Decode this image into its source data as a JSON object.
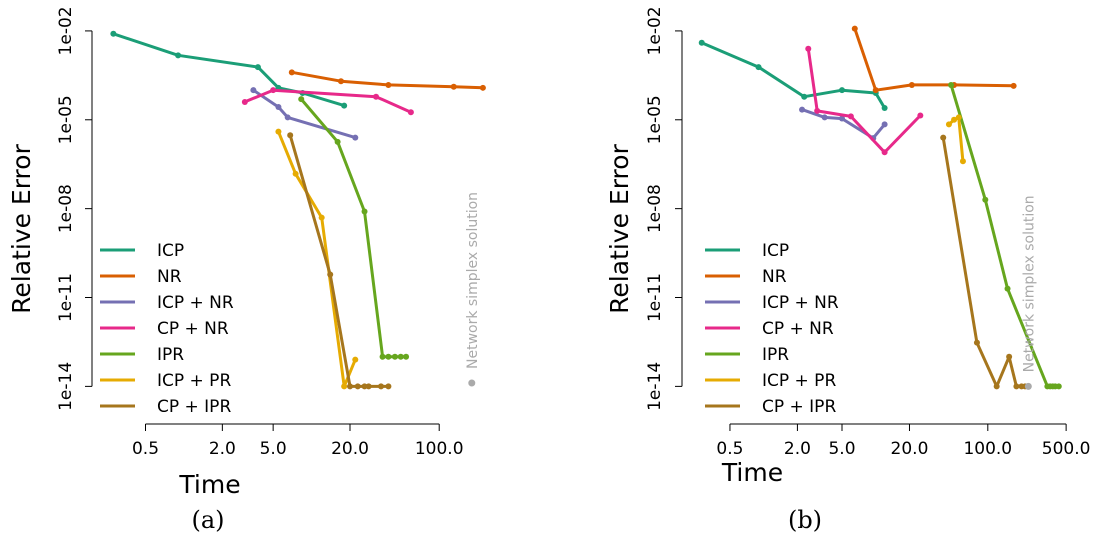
{
  "series_styles": [
    {
      "name": "ICP",
      "color": "#1b9e77"
    },
    {
      "name": "NR",
      "color": "#d95f02"
    },
    {
      "name": "ICP + NR",
      "color": "#7570b3"
    },
    {
      "name": "CP + NR",
      "color": "#e7298a"
    },
    {
      "name": "IPR",
      "color": "#66a61e"
    },
    {
      "name": "ICP + PR",
      "color": "#e6ab02"
    },
    {
      "name": "CP + IPR",
      "color": "#a6761d"
    }
  ],
  "chart_data": [
    {
      "type": "line",
      "caption": "(a)",
      "xlabel": "Time",
      "ylabel": "Relative Error",
      "x_scale": "log",
      "y_scale": "log",
      "xlim": [
        0.22,
        250
      ],
      "ylim": [
        1e-15,
        0.02
      ],
      "x_ticks": [
        {
          "value": 0.5,
          "label": "0.5"
        },
        {
          "value": 2,
          "label": "2.0"
        },
        {
          "value": 5,
          "label": "5.0"
        },
        {
          "value": 20,
          "label": "20.0"
        },
        {
          "value": 100,
          "label": "100.0"
        }
      ],
      "y_ticks": [
        {
          "value": 0.01,
          "label": "1e-02"
        },
        {
          "value": 1e-05,
          "label": "1e-05"
        },
        {
          "value": 1e-08,
          "label": "1e-08"
        },
        {
          "value": 1e-11,
          "label": "1e-11"
        },
        {
          "value": 1e-14,
          "label": "1e-14"
        }
      ],
      "annotation": {
        "text": "Network simplex solution",
        "x": 180,
        "y": 1.3e-14,
        "color": "#aaaaaa"
      },
      "legend": "bottom-left",
      "series": [
        {
          "name": "ICP",
          "x": [
            0.28,
            0.9,
            3.8,
            5.5,
            8.5,
            18
          ],
          "y": [
            0.008,
            0.0015,
            0.0006,
            0.00012,
            8e-05,
            3e-05
          ]
        },
        {
          "name": "NR",
          "x": [
            7,
            17,
            40,
            130,
            220
          ],
          "y": [
            0.0004,
            0.0002,
            0.00015,
            0.00013,
            0.00012
          ]
        },
        {
          "name": "ICP + NR",
          "x": [
            3.5,
            5.5,
            6.5,
            22
          ],
          "y": [
            0.0001,
            2.7e-05,
            1.2e-05,
            2.5e-06
          ]
        },
        {
          "name": "CP + NR",
          "x": [
            3,
            5,
            32,
            60
          ],
          "y": [
            4e-05,
            0.0001,
            6e-05,
            1.8e-05
          ]
        },
        {
          "name": "IPR",
          "x": [
            8.3,
            16,
            26,
            36,
            40,
            45,
            50,
            55
          ],
          "y": [
            5e-05,
            1.8e-06,
            8e-09,
            1e-13,
            1e-13,
            1e-13,
            1e-13,
            1e-13
          ]
        },
        {
          "name": "ICP + PR",
          "x": [
            5.5,
            7.5,
            12,
            18,
            22
          ],
          "y": [
            4e-06,
            1.5e-07,
            5e-09,
            1e-14,
            8e-14
          ]
        },
        {
          "name": "CP + IPR",
          "x": [
            6.8,
            14,
            20,
            23,
            26,
            28,
            35,
            40
          ],
          "y": [
            3e-06,
            6e-11,
            1e-14,
            1e-14,
            1e-14,
            1e-14,
            1e-14,
            1e-14
          ]
        }
      ]
    },
    {
      "type": "line",
      "caption": "(b)",
      "xlabel": "Time",
      "ylabel": "Relative Error",
      "x_scale": "log",
      "y_scale": "log",
      "xlim": [
        0.22,
        600
      ],
      "ylim": [
        1e-15,
        0.02
      ],
      "x_ticks": [
        {
          "value": 0.5,
          "label": "0.5"
        },
        {
          "value": 2,
          "label": "2.0"
        },
        {
          "value": 5,
          "label": "5.0"
        },
        {
          "value": 20,
          "label": "20.0"
        },
        {
          "value": 100,
          "label": "100.0"
        },
        {
          "value": 500,
          "label": "500.0"
        }
      ],
      "y_ticks": [
        {
          "value": 0.01,
          "label": "1e-02"
        },
        {
          "value": 1e-05,
          "label": "1e-05"
        },
        {
          "value": 1e-08,
          "label": "1e-08"
        },
        {
          "value": 1e-11,
          "label": "1e-11"
        },
        {
          "value": 1e-14,
          "label": "1e-14"
        }
      ],
      "annotation": {
        "text": "Network simplex solution",
        "x": 230,
        "y": 1e-14,
        "color": "#aaaaaa"
      },
      "legend": "bottom-left",
      "series": [
        {
          "name": "ICP",
          "x": [
            0.28,
            0.9,
            2.3,
            5,
            10,
            12
          ],
          "y": [
            0.004,
            0.0006,
            6e-05,
            0.0001,
            8e-05,
            2.5e-05
          ]
        },
        {
          "name": "NR",
          "x": [
            6.5,
            10,
            21,
            50,
            170
          ],
          "y": [
            0.012,
            0.0001,
            0.00015,
            0.00015,
            0.00014
          ]
        },
        {
          "name": "ICP + NR",
          "x": [
            2.2,
            3.5,
            5,
            9.5,
            12
          ],
          "y": [
            2.2e-05,
            1.2e-05,
            1.1e-05,
            2.4e-06,
            7e-06
          ]
        },
        {
          "name": "CP + NR",
          "x": [
            2.5,
            3,
            6,
            12,
            25
          ],
          "y": [
            0.0025,
            2e-05,
            1.3e-05,
            8e-07,
            1.4e-05
          ]
        },
        {
          "name": "IPR",
          "x": [
            47,
            95,
            150,
            340,
            360,
            380,
            400,
            430
          ],
          "y": [
            0.00015,
            2e-08,
            2e-11,
            1e-14,
            1e-14,
            1e-14,
            1e-14,
            1e-14
          ]
        },
        {
          "name": "ICP + PR",
          "x": [
            45,
            50,
            55,
            60
          ],
          "y": [
            7e-06,
            1e-05,
            1.2e-05,
            4e-07
          ]
        },
        {
          "name": "CP + IPR",
          "x": [
            40,
            80,
            120,
            155,
            180,
            200,
            215,
            230
          ],
          "y": [
            2.5e-06,
            3e-13,
            1e-14,
            1e-13,
            1e-14,
            1e-14,
            1e-14,
            1e-14
          ]
        }
      ]
    }
  ]
}
